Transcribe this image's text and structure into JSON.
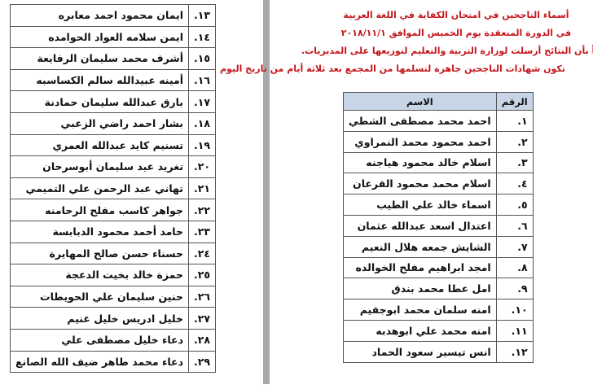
{
  "header": {
    "lines": [
      "أسماء الناجحين في امتحان الكفاية في اللغة العربية",
      "في الدورة المنعقدة يوم الخميس الموافق ٢٠١٨/١١/١",
      "علماً بأن النتائج أرسلت لوزارة التربية والتعليم لتوزيعها على المديريات.",
      "تكون شهادات الناجحين جاهزة لتسلمها من المجمع بعد ثلاثة أيام من تاريخ اليوم"
    ],
    "color": "#c4161c"
  },
  "right_table": {
    "headers": {
      "number": "الرقم",
      "name": "الاسم"
    },
    "rows": [
      {
        "number": "١.",
        "name": "احمد محمد مصطفى الشطي"
      },
      {
        "number": "٢.",
        "name": "احمد محمود محمد النمراوي"
      },
      {
        "number": "٣.",
        "name": "اسلام خالد محمود هياجنه"
      },
      {
        "number": "٤.",
        "name": "اسلام محمد محمود القرعان"
      },
      {
        "number": "٥.",
        "name": "اسماء خالد علي الطيب"
      },
      {
        "number": "٦.",
        "name": "اعتدال اسعد عبدالله عثمان"
      },
      {
        "number": "٧.",
        "name": "الشايش جمعه هلال النعيم"
      },
      {
        "number": "٨.",
        "name": "امجد ابراهيم مفلح الخوالده"
      },
      {
        "number": "٩.",
        "name": "امل عطا محمد بندق"
      },
      {
        "number": "١٠.",
        "name": "امنه سلمان محمد ابوجقيم"
      },
      {
        "number": "١١.",
        "name": "امنه محمد علي ابوهدبه"
      },
      {
        "number": "١٢.",
        "name": "انس تيسير سعود الحماد"
      }
    ]
  },
  "left_table": {
    "rows": [
      {
        "number": "١٣.",
        "name": "ايمان محمود احمد معابره"
      },
      {
        "number": "١٤.",
        "name": "ايمن سلامه العواد الحوامده"
      },
      {
        "number": "١٥.",
        "name": "أشرف محمد سليمان الرفايعة"
      },
      {
        "number": "١٦.",
        "name": "أمينه عبيدالله سالم الكساسبه"
      },
      {
        "number": "١٧.",
        "name": "بارق عبدالله سليمان حمادنة"
      },
      {
        "number": "١٨.",
        "name": "بشار احمد راضي الزعبي"
      },
      {
        "number": "١٩.",
        "name": "تسنيم كايد عبدالله العمري"
      },
      {
        "number": "٢٠.",
        "name": "تغريد عيد سليمان أبوسرحان"
      },
      {
        "number": "٢١.",
        "name": "تهاني عبد الرحمن علي التميمي"
      },
      {
        "number": "٢٢.",
        "name": "جواهر كاسب مفلح الرحامنه"
      },
      {
        "number": "٢٣.",
        "name": "حامد أحمد محمود الدبابسة"
      },
      {
        "number": "٢٤.",
        "name": "حسناء حسن صالح المهايرة"
      },
      {
        "number": "٢٥.",
        "name": "حمزة خالد بخيت الدعجة"
      },
      {
        "number": "٢٦.",
        "name": "حنين سليمان علي الحويطات"
      },
      {
        "number": "٢٧.",
        "name": "خليل ادريس خليل غنيم"
      },
      {
        "number": "٢٨.",
        "name": "دعاء خليل مصطفى علي"
      },
      {
        "number": "٢٩.",
        "name": "دعاء محمد طاهر ضيف الله الصانع"
      }
    ]
  }
}
